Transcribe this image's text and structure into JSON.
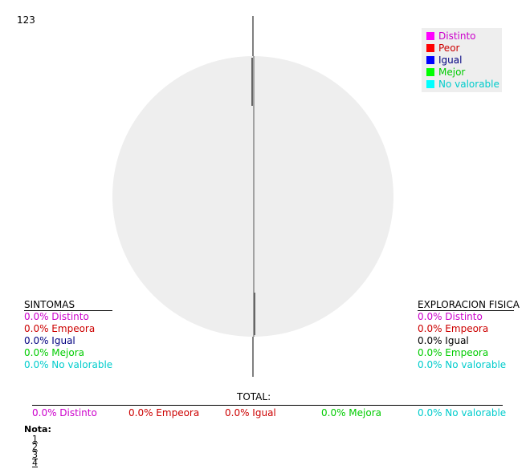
{
  "corner_label": "123",
  "colors": {
    "distinto": "#cc00cc",
    "peor": "#cc0000",
    "igual": "#000080",
    "mejor": "#00cc00",
    "no_valorable": "#00cccc",
    "pie_bg": "#eeeeee",
    "black": "#000000"
  },
  "legend": [
    {
      "label": "Distinto",
      "color": "#ff00ff",
      "text_color": "#cc00cc"
    },
    {
      "label": "Peor",
      "color": "#ff0000",
      "text_color": "#cc0000"
    },
    {
      "label": "Igual",
      "color": "#0000ff",
      "text_color": "#000080"
    },
    {
      "label": "Mejor",
      "color": "#00ff00",
      "text_color": "#00cc00"
    },
    {
      "label": "No valorable",
      "color": "#00ffff",
      "text_color": "#00cccc"
    }
  ],
  "chart_data": {
    "type": "pie",
    "title": "",
    "slices": [
      {
        "label": "Distinto",
        "value": 0.0
      },
      {
        "label": "Peor",
        "value": 0.0
      },
      {
        "label": "Igual",
        "value": 0.0
      },
      {
        "label": "Mejor",
        "value": 0.0
      },
      {
        "label": "No valorable",
        "value": 0.0
      }
    ],
    "legend_position": "top-right"
  },
  "sintomas": {
    "title": "SINTOMAS",
    "items": [
      {
        "text": "0.0% Distinto",
        "color": "#cc00cc"
      },
      {
        "text": "0.0% Empeora",
        "color": "#cc0000"
      },
      {
        "text": "0.0% Igual",
        "color": "#000080"
      },
      {
        "text": "0.0% Mejora",
        "color": "#00cc00"
      },
      {
        "text": "0.0% No valorable",
        "color": "#00cccc"
      }
    ]
  },
  "exploracion": {
    "title": "EXPLORACION FISICA",
    "items": [
      {
        "text": "0.0% Distinto",
        "color": "#cc00cc"
      },
      {
        "text": "0.0% Empeora",
        "color": "#cc0000"
      },
      {
        "text": "0.0% Igual",
        "color": "#000000"
      },
      {
        "text": "0.0% Empeora",
        "color": "#00cc00"
      },
      {
        "text": "0.0% No valorable",
        "color": "#00cccc"
      }
    ]
  },
  "total": {
    "title": "TOTAL:",
    "items": [
      {
        "text": "0.0% Distinto",
        "color": "#cc00cc"
      },
      {
        "text": "0.0% Empeora",
        "color": "#cc0000"
      },
      {
        "text": "0.0% Igual",
        "color": "#cc0000"
      },
      {
        "text": "0.0% Mejora",
        "color": "#00cc00"
      },
      {
        "text": "0.0% No valorable",
        "color": "#00cccc"
      }
    ]
  },
  "nota": {
    "label": "Nota:",
    "links": [
      "1",
      "2",
      "3",
      "4"
    ]
  }
}
